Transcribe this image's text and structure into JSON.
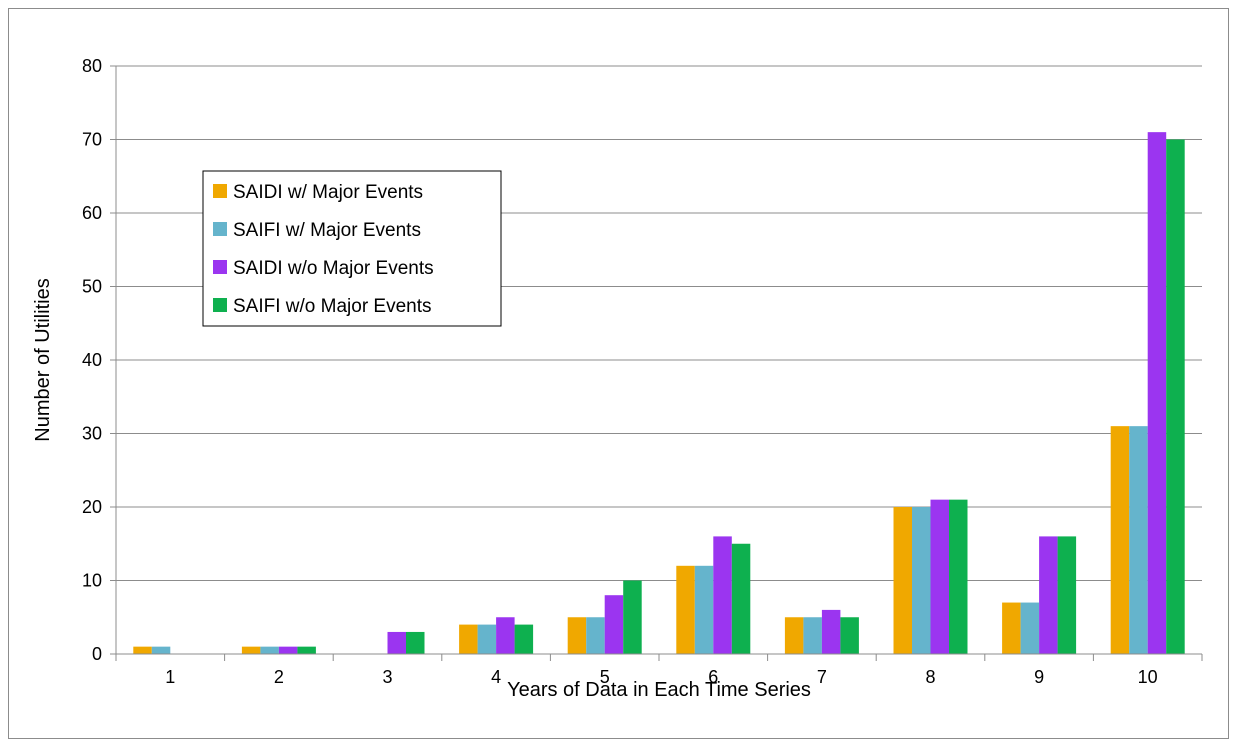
{
  "chart_data": {
    "type": "bar",
    "title": "",
    "xlabel": "Years of Data in Each Time Series",
    "ylabel": "Number of Utilities",
    "categories": [
      "1",
      "2",
      "3",
      "4",
      "5",
      "6",
      "7",
      "8",
      "9",
      "10"
    ],
    "ylim": [
      0,
      80
    ],
    "yticks": [
      0,
      10,
      20,
      30,
      40,
      50,
      60,
      70,
      80
    ],
    "grid": true,
    "legend_position": "upper-left",
    "series": [
      {
        "name": "SAIDI w/ Major Events",
        "color": "#f0a800",
        "values": [
          1,
          1,
          0,
          4,
          5,
          12,
          5,
          20,
          7,
          31
        ]
      },
      {
        "name": "SAIFI w/ Major Events",
        "color": "#65b4cc",
        "values": [
          1,
          1,
          0,
          4,
          5,
          12,
          5,
          20,
          7,
          31
        ]
      },
      {
        "name": "SAIDI w/o Major Events",
        "color": "#9b35f0",
        "values": [
          0,
          1,
          3,
          5,
          8,
          16,
          6,
          21,
          16,
          71
        ]
      },
      {
        "name": "SAIFI w/o Major Events",
        "color": "#0eb04f",
        "values": [
          0,
          1,
          3,
          4,
          10,
          15,
          5,
          21,
          16,
          70
        ]
      }
    ]
  }
}
